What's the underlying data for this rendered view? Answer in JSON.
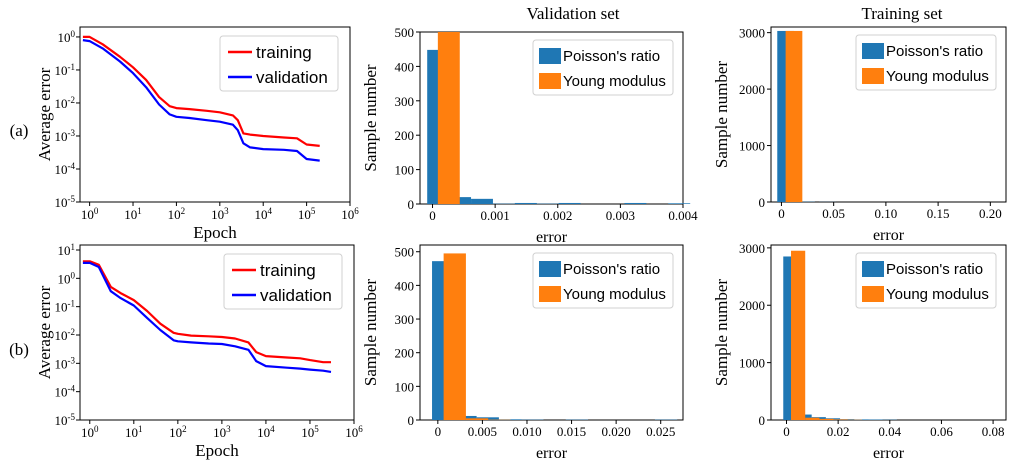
{
  "column_titles": [
    "Validation set",
    "Training set"
  ],
  "row_labels": [
    "(a)",
    "(b)"
  ],
  "colors": {
    "training": "#ff0000",
    "validation": "#0000ff",
    "poisson": "#1f77b4",
    "young": "#ff7f0e"
  },
  "chart_data": [
    {
      "type": "line",
      "row": "(a)",
      "xlabel": "Epoch",
      "ylabel": "Average error",
      "xscale": "log",
      "yscale": "log",
      "xlim": [
        0.6,
        1000000
      ],
      "ylim": [
        1e-05,
        2
      ],
      "x_ticks": [
        "10^0",
        "10^1",
        "10^2",
        "10^3",
        "10^4",
        "10^5",
        "10^6"
      ],
      "y_ticks": [
        "10^-5",
        "10^-4",
        "10^-3",
        "10^-2",
        "10^-1",
        "10^0"
      ],
      "legend": "top-right",
      "series": [
        {
          "name": "training",
          "x": [
            0.7,
            1,
            2,
            5,
            10,
            20,
            40,
            70,
            100,
            200,
            500,
            1000,
            2000,
            2600,
            3500,
            5000,
            10000,
            30000,
            60000,
            100000,
            200000
          ],
          "y": [
            1.0,
            1.0,
            0.6,
            0.25,
            0.12,
            0.05,
            0.015,
            0.008,
            0.007,
            0.0065,
            0.0058,
            0.0052,
            0.0042,
            0.003,
            0.0012,
            0.0011,
            0.001,
            0.0009,
            0.00085,
            0.00055,
            0.0005
          ]
        },
        {
          "name": "validation",
          "x": [
            0.7,
            1,
            2,
            5,
            10,
            20,
            40,
            70,
            100,
            200,
            500,
            1000,
            2000,
            2600,
            3500,
            5000,
            10000,
            30000,
            60000,
            100000,
            200000
          ],
          "y": [
            0.8,
            0.75,
            0.45,
            0.18,
            0.08,
            0.03,
            0.009,
            0.0045,
            0.0038,
            0.0035,
            0.003,
            0.0027,
            0.0022,
            0.0015,
            0.0006,
            0.00045,
            0.0004,
            0.00038,
            0.00035,
            0.0002,
            0.00018
          ]
        }
      ]
    },
    {
      "type": "bar",
      "row": "(a)",
      "title": "Validation set",
      "xlabel": "error",
      "ylabel": "Sample number",
      "xlim": [
        -0.0002,
        0.004
      ],
      "ylim": [
        0,
        500
      ],
      "bin_width": 0.00035,
      "x_ticks": [
        "0",
        "0.001",
        "0.002",
        "0.003",
        "0.004"
      ],
      "y_ticks": [
        "0",
        "100",
        "200",
        "300",
        "400",
        "500"
      ],
      "legend": "top-right",
      "series": [
        {
          "name": "Poisson's ratio",
          "x": [
            9e-05,
            0.00044,
            0.00079,
            0.00114,
            0.00149,
            0.00184,
            0.00219,
            0.00254,
            0.00289,
            0.00324,
            0.00359,
            0.00394
          ],
          "values": [
            448,
            20,
            15,
            1,
            3,
            1,
            3,
            0,
            0,
            3,
            0,
            2
          ]
        },
        {
          "name": "Young modulus",
          "x": [
            0.00026
          ],
          "values": [
            500
          ]
        }
      ]
    },
    {
      "type": "bar",
      "row": "(a)",
      "title": "Training set",
      "xlabel": "error",
      "ylabel": "Sample number",
      "xlim": [
        -0.01,
        0.215
      ],
      "ylim": [
        0,
        3100
      ],
      "bin_width": 0.016,
      "x_ticks": [
        "0",
        "0.05",
        "0.10",
        "0.15",
        "0.20"
      ],
      "y_ticks": [
        "0",
        "1000",
        "2000",
        "3000"
      ],
      "legend": "top-right",
      "series": [
        {
          "name": "Poisson's ratio",
          "x": [
            0.004,
            0.024,
            0.044
          ],
          "values": [
            3030,
            5,
            2
          ]
        },
        {
          "name": "Young modulus",
          "x": [
            0.012
          ],
          "values": [
            3030
          ]
        }
      ]
    },
    {
      "type": "line",
      "row": "(b)",
      "xlabel": "Epoch",
      "ylabel": "Average error",
      "xscale": "log",
      "yscale": "log",
      "xlim": [
        0.6,
        1000000
      ],
      "ylim": [
        1e-05,
        15
      ],
      "x_ticks": [
        "10^0",
        "10^1",
        "10^2",
        "10^3",
        "10^4",
        "10^5",
        "10^6"
      ],
      "y_ticks": [
        "10^-5",
        "10^-4",
        "10^-3",
        "10^-2",
        "10^-1",
        "10^0",
        "10^1"
      ],
      "legend": "top-right",
      "series": [
        {
          "name": "training",
          "x": [
            0.7,
            1,
            1.6,
            3,
            5,
            10,
            20,
            40,
            80,
            100,
            200,
            500,
            1000,
            2000,
            4000,
            6000,
            10000,
            30000,
            60000,
            100000,
            200000,
            300000
          ],
          "y": [
            4.0,
            4.0,
            3.0,
            0.5,
            0.3,
            0.17,
            0.07,
            0.025,
            0.012,
            0.011,
            0.0095,
            0.009,
            0.0085,
            0.0075,
            0.0055,
            0.0025,
            0.0018,
            0.0016,
            0.0015,
            0.0013,
            0.0011,
            0.0011
          ]
        },
        {
          "name": "validation",
          "x": [
            0.7,
            1,
            1.6,
            3,
            5,
            10,
            20,
            40,
            80,
            100,
            200,
            500,
            1000,
            2000,
            4000,
            6000,
            10000,
            30000,
            60000,
            100000,
            200000,
            300000
          ],
          "y": [
            3.5,
            3.5,
            2.5,
            0.35,
            0.2,
            0.11,
            0.04,
            0.015,
            0.0065,
            0.006,
            0.0055,
            0.005,
            0.0048,
            0.004,
            0.003,
            0.0012,
            0.0008,
            0.0007,
            0.00065,
            0.0006,
            0.00055,
            0.0005
          ]
        }
      ]
    },
    {
      "type": "bar",
      "row": "(b)",
      "xlabel": "error",
      "ylabel": "Sample number",
      "xlim": [
        -0.002,
        0.0275
      ],
      "ylim": [
        0,
        520
      ],
      "bin_width": 0.0025,
      "x_ticks": [
        "0",
        "0.005",
        "0.010",
        "0.015",
        "0.020",
        "0.025"
      ],
      "y_ticks": [
        "0",
        "100",
        "200",
        "300",
        "400",
        "500"
      ],
      "legend": "top-right",
      "series": [
        {
          "name": "Poisson's ratio",
          "x": [
            0.0006,
            0.0031,
            0.0056,
            0.0081,
            0.0106,
            0.0131,
            0.0156,
            0.0181,
            0.0206,
            0.0231,
            0.0256
          ],
          "values": [
            472,
            12,
            8,
            2,
            1,
            0,
            1,
            0,
            0,
            0,
            1
          ]
        },
        {
          "name": "Young modulus",
          "x": [
            0.0019,
            0.0044,
            0.0069
          ],
          "values": [
            495,
            5,
            1
          ]
        }
      ]
    },
    {
      "type": "bar",
      "row": "(b)",
      "xlabel": "error",
      "ylabel": "Sample number",
      "xlim": [
        -0.006,
        0.085
      ],
      "ylim": [
        0,
        3050
      ],
      "bin_width": 0.0055,
      "x_ticks": [
        "0",
        "0.02",
        "0.04",
        "0.06",
        "0.08"
      ],
      "y_ticks": [
        "0",
        "1000",
        "2000",
        "3000"
      ],
      "legend": "top-right",
      "series": [
        {
          "name": "Poisson's ratio",
          "x": [
            0.0015,
            0.007,
            0.0125,
            0.018,
            0.0235,
            0.029,
            0.0345,
            0.04
          ],
          "values": [
            2850,
            95,
            50,
            30,
            15,
            10,
            8,
            5
          ]
        },
        {
          "name": "Young modulus",
          "x": [
            0.0045,
            0.01,
            0.0155,
            0.021,
            0.0265
          ],
          "values": [
            2950,
            40,
            20,
            10,
            5
          ]
        }
      ]
    }
  ]
}
